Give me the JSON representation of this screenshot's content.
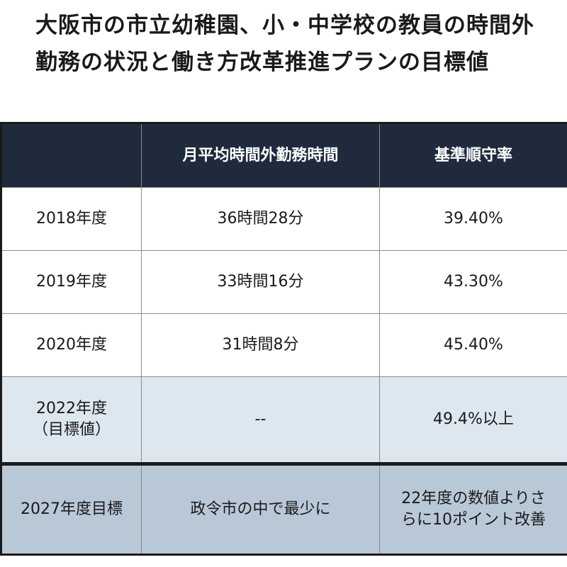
{
  "title": "大阪市の市立幼稚園、小・中学校の教員の時間外勤務の状況と働き方改革推進プランの目標値",
  "table": {
    "headers": [
      "",
      "月平均時間外勤務時間",
      "基準順守率"
    ],
    "rows": [
      {
        "year": "2018年度",
        "hours": "36時間28分",
        "rate": "39.40%"
      },
      {
        "year": "2019年度",
        "hours": "33時間16分",
        "rate": "43.30%"
      },
      {
        "year": "2020年度",
        "hours": "31時間8分",
        "rate": "45.40%"
      }
    ],
    "target": {
      "year_line1": "2022年度",
      "year_line2": "（目標値）",
      "hours": "--",
      "rate": "49.4%以上"
    },
    "goal": {
      "label": "2027年度目標",
      "hours": "政令市の中で最少に",
      "rate_line1": "22年度の数値よりさ",
      "rate_line2": "らに10ポイント改善"
    }
  }
}
